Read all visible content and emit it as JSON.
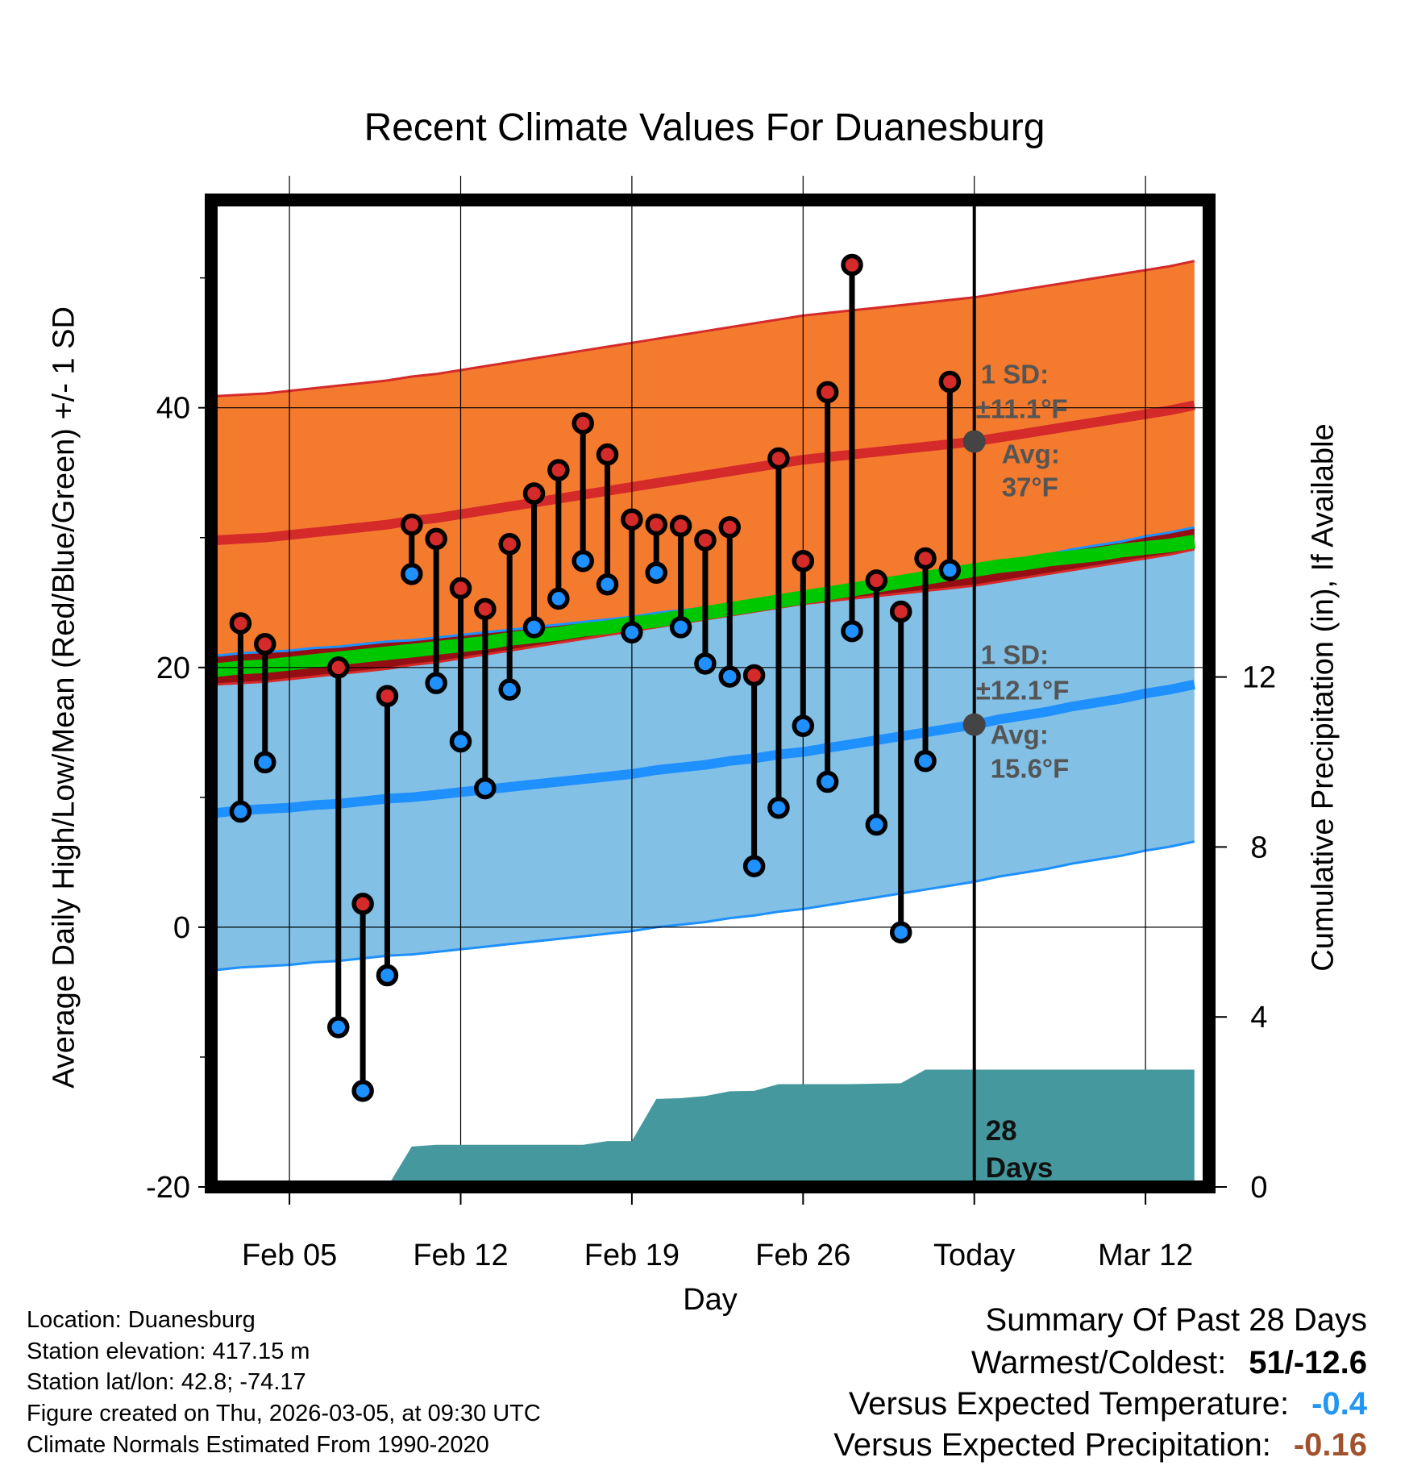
{
  "title": "Recent Climate Values For Duanesburg",
  "y_left_label": "Average Daily High/Low/Mean (Red/Blue/Green) +/- 1 SD",
  "y_right_label": "Cumulative Precipitation (in), If Available",
  "colors": {
    "high_band": "#f47a2e",
    "high_mean": "#d42a2a",
    "low_band": "#82c0e6",
    "low_mean": "#1e90ff",
    "mean_line": "#00c800",
    "overlap": "#950e13",
    "precip": "#45999e",
    "annotation": "#555555",
    "high_point": "#d42a2a",
    "low_point": "#1e90ff",
    "summary_temp": "#2196f3",
    "summary_precip": "#a0522d"
  },
  "high_annotation": {
    "sd_label": "1 SD:",
    "sd_value": "±11.1°F",
    "avg_label": "Avg:",
    "avg_value": "37°F"
  },
  "low_annotation": {
    "sd_label": "1 SD:",
    "sd_value": "±12.1°F",
    "avg_label": "Avg:",
    "avg_value": "15.6°F"
  },
  "precip_label": [
    "28",
    "Days"
  ],
  "info": {
    "location": "Location: Duanesburg",
    "elevation": "Station elevation: 417.15 m",
    "latlon": "Station lat/lon: 42.8; -74.17",
    "created": "Figure created on Thu, 2026-03-05, at 09:30 UTC",
    "normals": "Climate Normals Estimated From 1990-2020"
  },
  "summary": {
    "heading": "Summary Of Past 28 Days",
    "warm_cold_label": "Warmest/Coldest:",
    "warm_cold_value": "51/-12.6",
    "temp_label": "Versus Expected Temperature:",
    "temp_value": "-0.4",
    "precip_label": "Versus Expected Precipitation:",
    "precip_value": "-0.16"
  },
  "chart_data": {
    "type": "line",
    "xlabel": "Day",
    "x_tick_labels": [
      "Feb 05",
      "Feb 12",
      "Feb 19",
      "Feb 26",
      "Today",
      "Mar 12"
    ],
    "x_tick_days": [
      5,
      12,
      19,
      26,
      33,
      40
    ],
    "xlim": [
      1.8,
      42.6
    ],
    "ylim": [
      -20,
      56
    ],
    "y_ticks": [
      -20,
      0,
      20,
      40
    ],
    "y_minor_ticks": [
      -10,
      10,
      30,
      50
    ],
    "y2_ticks": [
      0,
      4,
      8,
      12
    ],
    "y2_range_per_left_unit": 0.3056,
    "today_day": 33,
    "days": [
      2,
      3,
      4,
      5,
      6,
      7,
      8,
      9,
      10,
      11,
      12,
      13,
      14,
      15,
      16,
      17,
      18,
      19,
      20,
      21,
      22,
      23,
      24,
      25,
      26,
      27,
      28,
      29,
      30,
      31,
      32,
      33,
      34,
      35,
      36,
      37,
      38,
      39,
      40,
      41,
      42
    ],
    "normal_high": [
      29.8,
      29.9,
      30.0,
      30.2,
      30.4,
      30.6,
      30.8,
      31.0,
      31.3,
      31.5,
      31.8,
      32.1,
      32.4,
      32.7,
      33.0,
      33.3,
      33.6,
      33.9,
      34.2,
      34.5,
      34.8,
      35.1,
      35.4,
      35.7,
      36.0,
      36.2,
      36.4,
      36.6,
      36.8,
      37.0,
      37.2,
      37.4,
      37.7,
      38.0,
      38.3,
      38.6,
      38.9,
      39.2,
      39.5,
      39.8,
      40.2
    ],
    "high_sd": 11.1,
    "normal_low": [
      8.8,
      9.0,
      9.1,
      9.2,
      9.4,
      9.5,
      9.7,
      9.9,
      10.0,
      10.2,
      10.4,
      10.6,
      10.8,
      11.0,
      11.2,
      11.4,
      11.6,
      11.8,
      12.1,
      12.3,
      12.5,
      12.8,
      13.0,
      13.3,
      13.5,
      13.8,
      14.1,
      14.4,
      14.7,
      15.0,
      15.3,
      15.6,
      16.0,
      16.3,
      16.6,
      17.0,
      17.3,
      17.6,
      18.0,
      18.3,
      18.7
    ],
    "low_sd": 12.1,
    "normal_mean": [
      19.8,
      20.0,
      20.1,
      20.3,
      20.5,
      20.7,
      20.9,
      21.1,
      21.3,
      21.5,
      21.7,
      21.9,
      22.2,
      22.4,
      22.6,
      22.9,
      23.1,
      23.4,
      23.6,
      23.9,
      24.2,
      24.5,
      24.8,
      25.1,
      25.4,
      25.7,
      26.0,
      26.3,
      26.6,
      26.9,
      27.2,
      27.5,
      27.8,
      28.0,
      28.3,
      28.5,
      28.7,
      29.0,
      29.2,
      29.4,
      29.7
    ],
    "obs_days": [
      3,
      4,
      5,
      6,
      7,
      8,
      9,
      10,
      11,
      12,
      13,
      14,
      15,
      16,
      17,
      18,
      19,
      20,
      21,
      22,
      23,
      24,
      25,
      26,
      27,
      28,
      29,
      30,
      31,
      32
    ],
    "obs_high": [
      23.4,
      21.8,
      null,
      null,
      20.0,
      1.8,
      17.8,
      31.0,
      29.9,
      26.1,
      24.5,
      29.5,
      33.4,
      35.2,
      38.8,
      36.4,
      31.4,
      31.0,
      30.9,
      29.8,
      30.8,
      19.4,
      36.1,
      28.2,
      41.2,
      51.0,
      26.7,
      24.3,
      28.4,
      42.0
    ],
    "obs_low": [
      8.9,
      12.7,
      null,
      null,
      -7.7,
      -12.6,
      -3.7,
      27.2,
      18.8,
      14.3,
      10.7,
      18.3,
      23.1,
      25.3,
      28.2,
      26.4,
      22.7,
      27.3,
      23.1,
      20.3,
      19.3,
      4.7,
      9.2,
      15.5,
      11.2,
      22.8,
      7.9,
      -0.4,
      12.8,
      27.5
    ],
    "precip_days": [
      9,
      10,
      11,
      12,
      13,
      14,
      15,
      16,
      17,
      18,
      19,
      20,
      21,
      22,
      23,
      24,
      25,
      26,
      27,
      28,
      29,
      30,
      31,
      32,
      33,
      34,
      35,
      36,
      37,
      38,
      39,
      40,
      41,
      42
    ],
    "precip_cum": [
      0,
      0.95,
      0.99,
      0.99,
      0.99,
      0.99,
      0.99,
      0.99,
      0.99,
      1.08,
      1.08,
      2.07,
      2.09,
      2.14,
      2.25,
      2.26,
      2.42,
      2.42,
      2.42,
      2.42,
      2.43,
      2.44,
      2.76,
      2.76,
      2.76,
      2.76,
      2.76,
      2.76,
      2.76,
      2.76,
      2.76,
      2.76,
      2.76,
      2.76
    ],
    "high_summary_day": 33,
    "low_summary_day": 33
  }
}
